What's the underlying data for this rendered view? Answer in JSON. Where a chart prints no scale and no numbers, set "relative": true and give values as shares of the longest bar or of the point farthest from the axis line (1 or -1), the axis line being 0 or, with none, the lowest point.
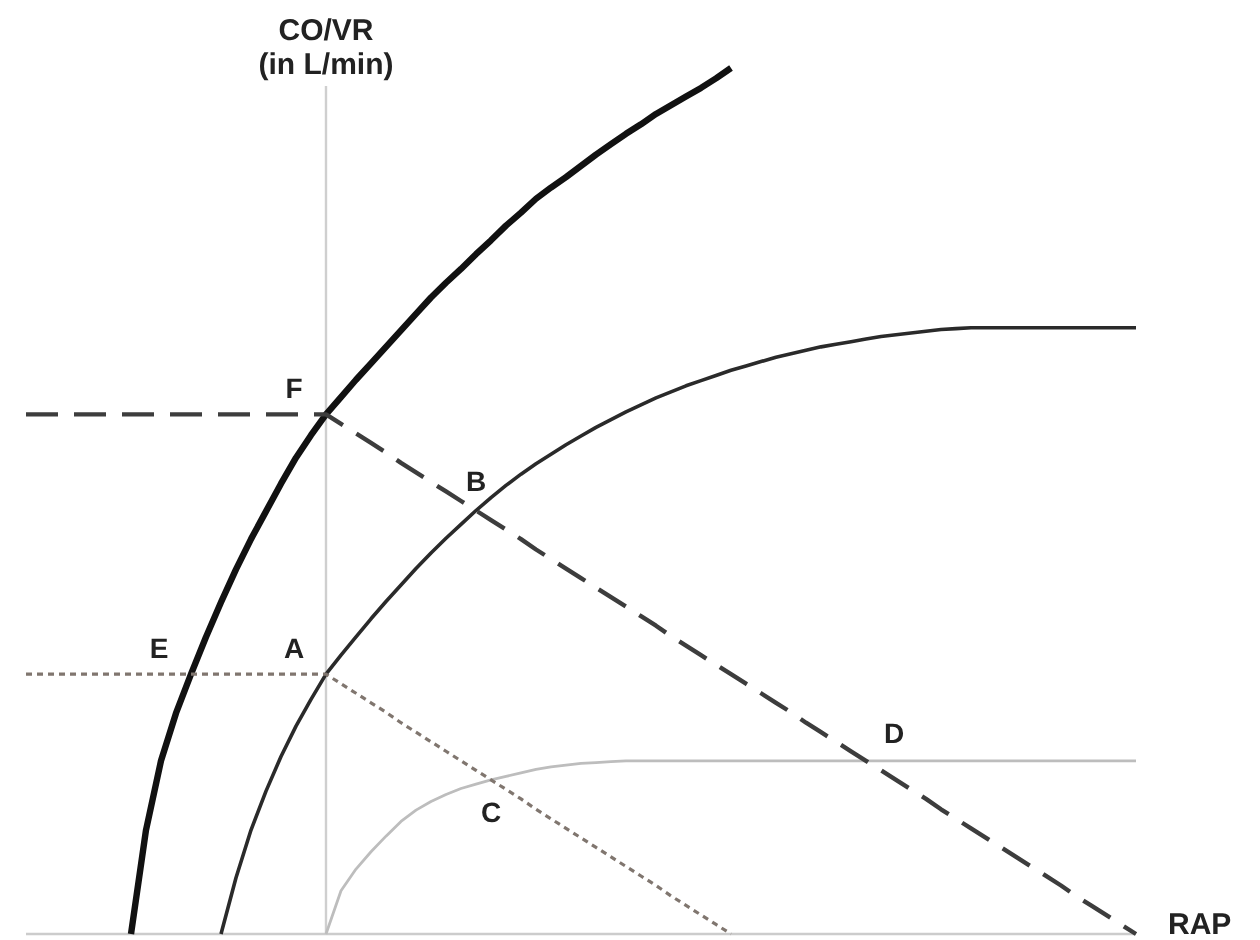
{
  "chart_data": {
    "type": "line",
    "relative": true,
    "ylabel": "CO/VR\n(in L/min)",
    "xlabel": "RAP",
    "categories": [
      null,
      null,
      null,
      null,
      null,
      null,
      null,
      null,
      null,
      null,
      null,
      null,
      null,
      null,
      null,
      null,
      null,
      null,
      null,
      null,
      null,
      null,
      null,
      null,
      null,
      null,
      null,
      null,
      null,
      null,
      null,
      null,
      null,
      null,
      null,
      null,
      null,
      null,
      null,
      null,
      null,
      null,
      null,
      null,
      null,
      null,
      null,
      null,
      null,
      null,
      null,
      null,
      null,
      null,
      null,
      null,
      null,
      null,
      null,
      null,
      null,
      null,
      null,
      null,
      null,
      null,
      null,
      null,
      null,
      null,
      null,
      null,
      null,
      null,
      null
    ],
    "series": [
      {
        "color": "#111111",
        "line_style": "solid",
        "values": [
          null,
          null,
          null,
          null,
          null,
          null,
          null,
          0,
          0.12,
          0.2,
          0.255,
          0.3,
          0.343,
          0.383,
          0.421,
          0.456,
          0.488,
          0.52,
          0.55,
          0.576,
          0.6,
          0.62,
          0.64,
          0.659,
          0.678,
          0.697,
          0.716,
          0.735,
          0.752,
          0.768,
          0.785,
          0.801,
          0.818,
          0.833,
          0.849,
          0.862,
          0.874,
          0.887,
          0.9,
          0.912,
          0.924,
          0.935,
          0.947,
          0.957,
          0.967,
          0.977,
          0.988,
          1,
          null,
          null,
          null,
          null,
          null,
          null,
          null,
          null,
          null,
          null,
          null,
          null,
          null,
          null,
          null,
          null,
          null,
          null,
          null,
          null,
          null,
          null,
          null,
          null,
          null,
          null,
          null
        ]
      },
      {
        "color": "#2a2a2a",
        "line_style": "solid",
        "values": [
          null,
          null,
          null,
          null,
          null,
          null,
          null,
          null,
          null,
          null,
          null,
          null,
          null,
          0,
          0.065,
          0.12,
          0.165,
          0.205,
          0.24,
          0.271,
          0.3,
          0.322,
          0.343,
          0.364,
          0.384,
          0.403,
          0.422,
          0.44,
          0.457,
          0.473,
          0.489,
          0.504,
          0.518,
          0.531,
          0.543,
          0.554,
          0.565,
          0.575,
          0.585,
          0.594,
          0.603,
          0.611,
          0.619,
          0.626,
          0.633,
          0.639,
          0.645,
          0.651,
          0.656,
          0.661,
          0.666,
          0.67,
          0.674,
          0.678,
          0.681,
          0.684,
          0.687,
          0.69,
          0.692,
          0.694,
          0.696,
          0.698,
          0.699,
          0.7,
          0.7,
          0.7,
          0.7,
          0.7,
          0.7,
          0.7,
          0.7,
          0.7,
          0.7,
          0.7,
          0.7
        ]
      },
      {
        "color": "#bdbdbd",
        "line_style": "solid",
        "values": [
          null,
          null,
          null,
          null,
          null,
          null,
          null,
          null,
          null,
          null,
          null,
          null,
          null,
          null,
          null,
          null,
          null,
          null,
          null,
          null,
          0,
          0.05,
          0.075,
          0.095,
          0.113,
          0.13,
          0.143,
          0.153,
          0.161,
          0.168,
          0.173,
          0.178,
          0.182,
          0.186,
          0.19,
          0.193,
          0.195,
          0.197,
          0.198,
          0.199,
          0.2,
          0.2,
          0.2,
          0.2,
          0.2,
          0.2,
          0.2,
          0.2,
          0.2,
          0.2,
          0.2,
          0.2,
          0.2,
          0.2,
          0.2,
          0.2,
          0.2,
          0.2,
          0.2,
          0.2,
          0.2,
          0.2,
          0.2,
          0.2,
          0.2,
          0.2,
          0.2,
          0.2,
          0.2,
          0.2,
          0.2,
          0.2,
          0.2,
          0.2,
          0.2
        ]
      },
      {
        "color": "#3d3d3d",
        "line_style": "dashed",
        "values": [
          0.6,
          0.6,
          0.6,
          0.6,
          0.6,
          0.6,
          0.6,
          0.6,
          0.6,
          0.6,
          0.6,
          0.6,
          0.6,
          0.6,
          0.6,
          0.6,
          0.6,
          0.6,
          0.6,
          0.6,
          0.6,
          0.589,
          0.578,
          0.567,
          0.556,
          0.544,
          0.533,
          0.522,
          0.511,
          0.5,
          0.489,
          0.478,
          0.467,
          0.456,
          0.444,
          0.433,
          0.422,
          0.411,
          0.4,
          0.389,
          0.378,
          0.367,
          0.356,
          0.344,
          0.333,
          0.322,
          0.311,
          0.3,
          0.289,
          0.278,
          0.267,
          0.256,
          0.244,
          0.233,
          0.222,
          0.211,
          0.2,
          0.189,
          0.178,
          0.167,
          0.156,
          0.144,
          0.133,
          0.122,
          0.111,
          0.1,
          0.089,
          0.078,
          0.067,
          0.056,
          0.044,
          0.033,
          0.022,
          0.011,
          0
        ]
      },
      {
        "color": "#80766f",
        "line_style": "dotted",
        "values": [
          0.3,
          0.3,
          0.3,
          0.3,
          0.3,
          0.3,
          0.3,
          0.3,
          0.3,
          0.3,
          0.3,
          0.3,
          0.3,
          0.3,
          0.3,
          0.3,
          0.3,
          0.3,
          0.3,
          0.3,
          0.3,
          0.289,
          0.278,
          0.267,
          0.256,
          0.244,
          0.233,
          0.222,
          0.211,
          0.2,
          0.189,
          0.178,
          0.167,
          0.156,
          0.144,
          0.133,
          0.122,
          0.111,
          0.1,
          0.089,
          0.078,
          0.067,
          0.056,
          0.044,
          0.033,
          0.022,
          0.011,
          0,
          null,
          null,
          null,
          null,
          null,
          null,
          null,
          null,
          null,
          null,
          null,
          null,
          null,
          null,
          null,
          null,
          null,
          null,
          null,
          null,
          null,
          null,
          null,
          null,
          null,
          null,
          null
        ]
      }
    ],
    "annotations": [
      {
        "text": "F",
        "y": 0.6
      },
      {
        "text": "B",
        "y": 0.489
      },
      {
        "text": "E",
        "y": 0.3
      },
      {
        "text": "A",
        "y": 0.3
      },
      {
        "text": "C",
        "y": 0.178
      },
      {
        "text": "D",
        "y": 0.2
      }
    ]
  }
}
